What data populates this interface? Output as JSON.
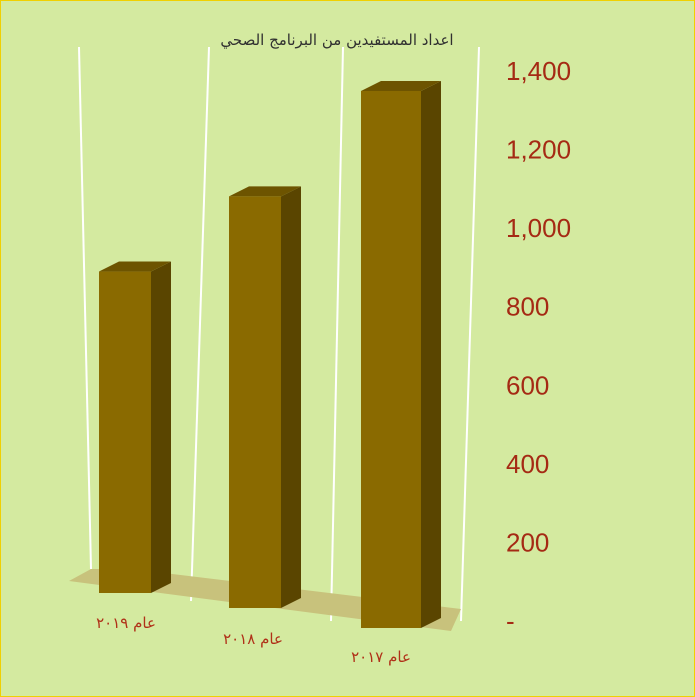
{
  "chart_data": {
    "type": "bar",
    "title": "اعداد المستفيدين من البرنامج الصحي",
    "categories": [
      "عام ٢٠١٩",
      "عام ٢٠١٨",
      "عام ٢٠١٧"
    ],
    "values": [
      820,
      1050,
      1370
    ],
    "ylim": [
      0,
      1400
    ],
    "yticks": [
      "-",
      "200",
      "400",
      "600",
      "800",
      "1,000",
      "1,200",
      "1,400"
    ],
    "ytick_values": [
      0,
      200,
      400,
      600,
      800,
      1000,
      1200,
      1400
    ],
    "yaxis_position": "right",
    "grid": false,
    "legend": "none",
    "colors": {
      "background": "#d4eaa0",
      "border": "#f0d000",
      "bar_front": "#8a6a00",
      "bar_side": "#5a4500",
      "bar_top": "#6d5400",
      "floor": "#c8c27c",
      "walls": "#ffffff",
      "tick_text": "#a52a14"
    }
  }
}
